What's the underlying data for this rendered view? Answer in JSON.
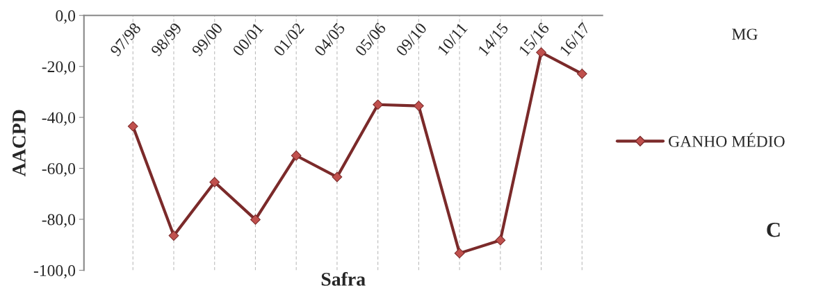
{
  "chart_data": {
    "type": "line",
    "categories": [
      "97/98",
      "98/99",
      "99/00",
      "00/01",
      "01/02",
      "04/05",
      "05/06",
      "09/10",
      "10/11",
      "14/15",
      "15/16",
      "16/17"
    ],
    "series": [
      {
        "name": "GANHO MÉDIO",
        "color": "#7b2a2a",
        "values": [
          -43.5,
          -86.4,
          -65.4,
          -80.1,
          -55.0,
          -63.4,
          -35.0,
          -35.5,
          -93.3,
          -88.2,
          -14.5,
          -22.9
        ]
      }
    ],
    "xlabel": "Safra",
    "ylabel": "AACPD",
    "ylim": [
      -100,
      0
    ],
    "yticks": [
      {
        "value": -100,
        "label": "-100,0"
      },
      {
        "value": -80,
        "label": "-80,0"
      },
      {
        "value": -60,
        "label": "-60,0"
      },
      {
        "value": -40,
        "label": "-40,0"
      },
      {
        "value": -20,
        "label": "-20,0"
      },
      {
        "value": 0,
        "label": "0,0"
      }
    ],
    "annotations": [
      "MG",
      "C"
    ],
    "grid": "x",
    "legend": "right",
    "marker": "diamond",
    "line_style": "solid"
  }
}
